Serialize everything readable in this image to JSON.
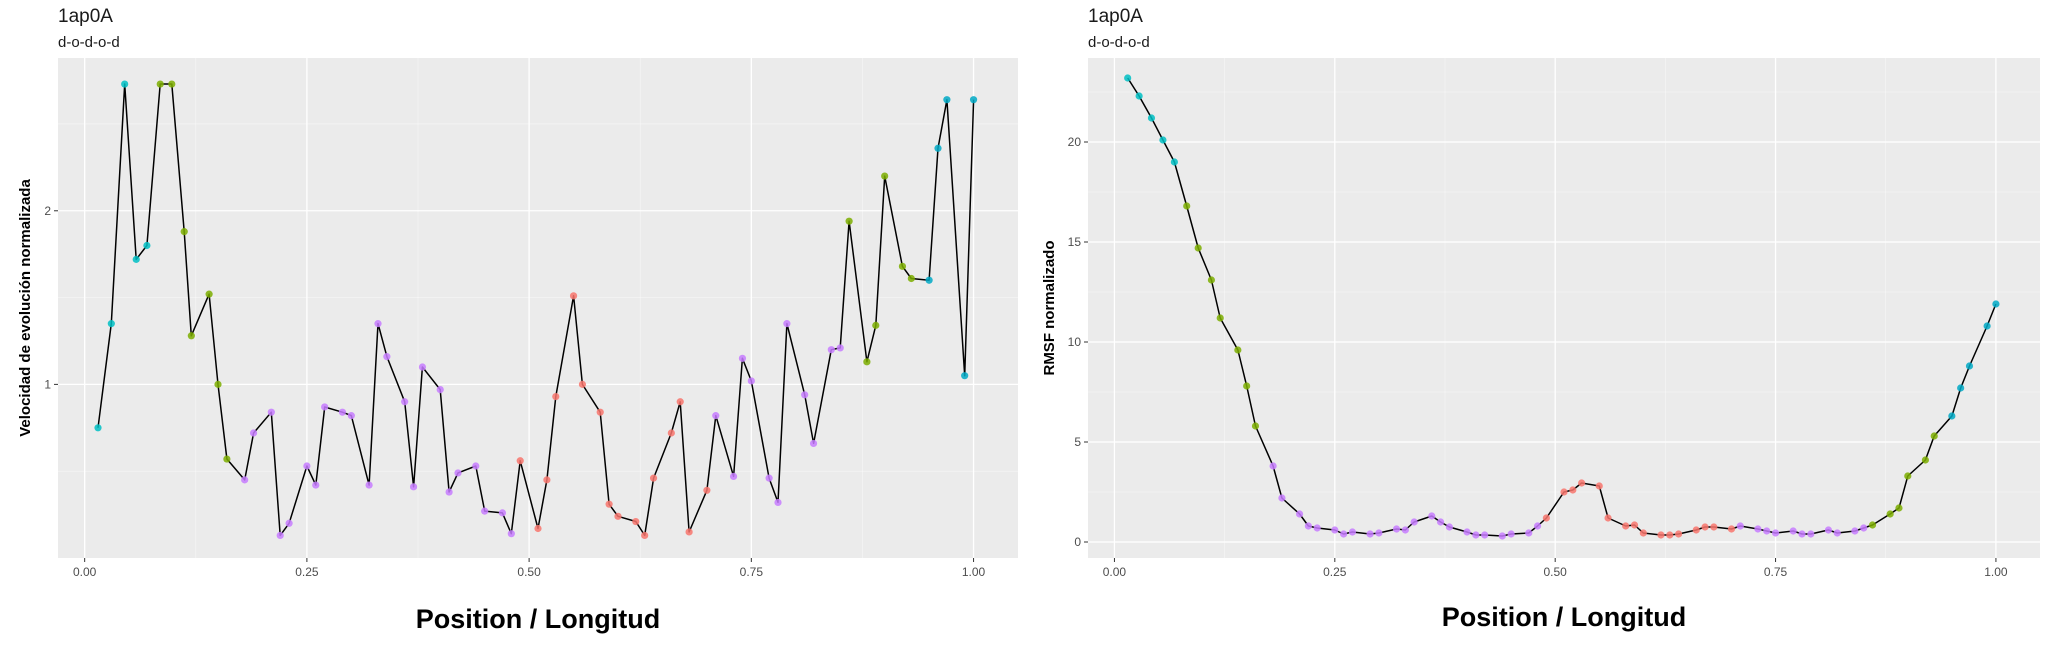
{
  "colors": {
    "panel": "#EBEBEB",
    "grid_major": "#FFFFFF",
    "line": "#000000",
    "d": "#00BFC4",
    "d_alt": "#00A9C6",
    "o_green": "#7CAE00",
    "o_purple": "#C77CFF",
    "red": "#F8766D"
  },
  "chart_data": [
    {
      "type": "line",
      "title": "1ap0A",
      "subtitle": "d-o-d-o-d",
      "xlabel": "Position / Longitud",
      "ylabel": "Velocidad de evolución normalizada",
      "xlim": [
        -0.03,
        1.05
      ],
      "ylim": [
        0.0,
        2.88
      ],
      "xticks": [
        0.0,
        0.25,
        0.5,
        0.75,
        1.0
      ],
      "xtick_labels": [
        "0.00",
        "0.25",
        "0.50",
        "0.75",
        "1.00"
      ],
      "yticks": [
        1,
        2
      ],
      "ytick_labels": [
        "1",
        "2"
      ],
      "grid": true,
      "legend": "none",
      "points": [
        {
          "x": 0.015,
          "y": 0.75,
          "color": "#00BFC4"
        },
        {
          "x": 0.03,
          "y": 1.35,
          "color": "#00BFC4"
        },
        {
          "x": 0.045,
          "y": 2.73,
          "color": "#00BFC4"
        },
        {
          "x": 0.058,
          "y": 1.72,
          "color": "#00BFC4"
        },
        {
          "x": 0.07,
          "y": 1.8,
          "color": "#00BFC4"
        },
        {
          "x": 0.085,
          "y": 2.73,
          "color": "#7CAE00"
        },
        {
          "x": 0.098,
          "y": 2.73,
          "color": "#7CAE00"
        },
        {
          "x": 0.112,
          "y": 1.88,
          "color": "#7CAE00"
        },
        {
          "x": 0.12,
          "y": 1.28,
          "color": "#7CAE00"
        },
        {
          "x": 0.14,
          "y": 1.52,
          "color": "#7CAE00"
        },
        {
          "x": 0.15,
          "y": 1.0,
          "color": "#7CAE00"
        },
        {
          "x": 0.16,
          "y": 0.57,
          "color": "#7CAE00"
        },
        {
          "x": 0.18,
          "y": 0.45,
          "color": "#C77CFF"
        },
        {
          "x": 0.19,
          "y": 0.72,
          "color": "#C77CFF"
        },
        {
          "x": 0.21,
          "y": 0.84,
          "color": "#C77CFF"
        },
        {
          "x": 0.22,
          "y": 0.13,
          "color": "#C77CFF"
        },
        {
          "x": 0.23,
          "y": 0.2,
          "color": "#C77CFF"
        },
        {
          "x": 0.25,
          "y": 0.53,
          "color": "#C77CFF"
        },
        {
          "x": 0.26,
          "y": 0.42,
          "color": "#C77CFF"
        },
        {
          "x": 0.27,
          "y": 0.87,
          "color": "#C77CFF"
        },
        {
          "x": 0.29,
          "y": 0.84,
          "color": "#C77CFF"
        },
        {
          "x": 0.3,
          "y": 0.82,
          "color": "#C77CFF"
        },
        {
          "x": 0.32,
          "y": 0.42,
          "color": "#C77CFF"
        },
        {
          "x": 0.33,
          "y": 1.35,
          "color": "#C77CFF"
        },
        {
          "x": 0.34,
          "y": 1.16,
          "color": "#C77CFF"
        },
        {
          "x": 0.36,
          "y": 0.9,
          "color": "#C77CFF"
        },
        {
          "x": 0.37,
          "y": 0.41,
          "color": "#C77CFF"
        },
        {
          "x": 0.38,
          "y": 1.1,
          "color": "#C77CFF"
        },
        {
          "x": 0.4,
          "y": 0.97,
          "color": "#C77CFF"
        },
        {
          "x": 0.41,
          "y": 0.38,
          "color": "#C77CFF"
        },
        {
          "x": 0.42,
          "y": 0.49,
          "color": "#C77CFF"
        },
        {
          "x": 0.44,
          "y": 0.53,
          "color": "#C77CFF"
        },
        {
          "x": 0.45,
          "y": 0.27,
          "color": "#C77CFF"
        },
        {
          "x": 0.47,
          "y": 0.26,
          "color": "#C77CFF"
        },
        {
          "x": 0.48,
          "y": 0.14,
          "color": "#C77CFF"
        },
        {
          "x": 0.49,
          "y": 0.56,
          "color": "#F8766D"
        },
        {
          "x": 0.51,
          "y": 0.17,
          "color": "#F8766D"
        },
        {
          "x": 0.52,
          "y": 0.45,
          "color": "#F8766D"
        },
        {
          "x": 0.53,
          "y": 0.93,
          "color": "#F8766D"
        },
        {
          "x": 0.55,
          "y": 1.51,
          "color": "#F8766D"
        },
        {
          "x": 0.56,
          "y": 1.0,
          "color": "#F8766D"
        },
        {
          "x": 0.58,
          "y": 0.84,
          "color": "#F8766D"
        },
        {
          "x": 0.59,
          "y": 0.31,
          "color": "#F8766D"
        },
        {
          "x": 0.6,
          "y": 0.24,
          "color": "#F8766D"
        },
        {
          "x": 0.62,
          "y": 0.21,
          "color": "#F8766D"
        },
        {
          "x": 0.63,
          "y": 0.13,
          "color": "#F8766D"
        },
        {
          "x": 0.64,
          "y": 0.46,
          "color": "#F8766D"
        },
        {
          "x": 0.66,
          "y": 0.72,
          "color": "#F8766D"
        },
        {
          "x": 0.67,
          "y": 0.9,
          "color": "#F8766D"
        },
        {
          "x": 0.68,
          "y": 0.15,
          "color": "#F8766D"
        },
        {
          "x": 0.7,
          "y": 0.39,
          "color": "#F8766D"
        },
        {
          "x": 0.71,
          "y": 0.82,
          "color": "#C77CFF"
        },
        {
          "x": 0.73,
          "y": 0.47,
          "color": "#C77CFF"
        },
        {
          "x": 0.74,
          "y": 1.15,
          "color": "#C77CFF"
        },
        {
          "x": 0.75,
          "y": 1.02,
          "color": "#C77CFF"
        },
        {
          "x": 0.77,
          "y": 0.46,
          "color": "#C77CFF"
        },
        {
          "x": 0.78,
          "y": 0.32,
          "color": "#C77CFF"
        },
        {
          "x": 0.79,
          "y": 1.35,
          "color": "#C77CFF"
        },
        {
          "x": 0.81,
          "y": 0.94,
          "color": "#C77CFF"
        },
        {
          "x": 0.82,
          "y": 0.66,
          "color": "#C77CFF"
        },
        {
          "x": 0.84,
          "y": 1.2,
          "color": "#C77CFF"
        },
        {
          "x": 0.85,
          "y": 1.21,
          "color": "#C77CFF"
        },
        {
          "x": 0.86,
          "y": 1.94,
          "color": "#7CAE00"
        },
        {
          "x": 0.88,
          "y": 1.13,
          "color": "#7CAE00"
        },
        {
          "x": 0.89,
          "y": 1.34,
          "color": "#7CAE00"
        },
        {
          "x": 0.9,
          "y": 2.2,
          "color": "#7CAE00"
        },
        {
          "x": 0.92,
          "y": 1.68,
          "color": "#7CAE00"
        },
        {
          "x": 0.93,
          "y": 1.61,
          "color": "#7CAE00"
        },
        {
          "x": 0.95,
          "y": 1.6,
          "color": "#00A9C6"
        },
        {
          "x": 0.96,
          "y": 2.36,
          "color": "#00A9C6"
        },
        {
          "x": 0.97,
          "y": 2.64,
          "color": "#00A9C6"
        },
        {
          "x": 0.99,
          "y": 1.05,
          "color": "#00A9C6"
        },
        {
          "x": 1.0,
          "y": 2.64,
          "color": "#00A9C6"
        }
      ]
    },
    {
      "type": "line",
      "title": "1ap0A",
      "subtitle": "d-o-d-o-d",
      "xlabel": "Position / Longitud",
      "ylabel": "RMSF normalizado",
      "xlim": [
        -0.03,
        1.05
      ],
      "ylim": [
        -0.8,
        24.2
      ],
      "xticks": [
        0.0,
        0.25,
        0.5,
        0.75,
        1.0
      ],
      "xtick_labels": [
        "0.00",
        "0.25",
        "0.50",
        "0.75",
        "1.00"
      ],
      "yticks": [
        0,
        5,
        10,
        15,
        20
      ],
      "ytick_labels": [
        "0",
        "5",
        "10",
        "15",
        "20"
      ],
      "grid": true,
      "legend": "none",
      "points": [
        {
          "x": 0.015,
          "y": 23.2,
          "color": "#00BFC4"
        },
        {
          "x": 0.028,
          "y": 22.3,
          "color": "#00BFC4"
        },
        {
          "x": 0.042,
          "y": 21.2,
          "color": "#00BFC4"
        },
        {
          "x": 0.055,
          "y": 20.1,
          "color": "#00BFC4"
        },
        {
          "x": 0.068,
          "y": 19.0,
          "color": "#00BFC4"
        },
        {
          "x": 0.082,
          "y": 16.8,
          "color": "#7CAE00"
        },
        {
          "x": 0.095,
          "y": 14.7,
          "color": "#7CAE00"
        },
        {
          "x": 0.11,
          "y": 13.1,
          "color": "#7CAE00"
        },
        {
          "x": 0.12,
          "y": 11.2,
          "color": "#7CAE00"
        },
        {
          "x": 0.14,
          "y": 9.6,
          "color": "#7CAE00"
        },
        {
          "x": 0.15,
          "y": 7.8,
          "color": "#7CAE00"
        },
        {
          "x": 0.16,
          "y": 5.8,
          "color": "#7CAE00"
        },
        {
          "x": 0.18,
          "y": 3.8,
          "color": "#C77CFF"
        },
        {
          "x": 0.19,
          "y": 2.2,
          "color": "#C77CFF"
        },
        {
          "x": 0.21,
          "y": 1.4,
          "color": "#C77CFF"
        },
        {
          "x": 0.22,
          "y": 0.8,
          "color": "#C77CFF"
        },
        {
          "x": 0.23,
          "y": 0.7,
          "color": "#C77CFF"
        },
        {
          "x": 0.25,
          "y": 0.6,
          "color": "#C77CFF"
        },
        {
          "x": 0.26,
          "y": 0.4,
          "color": "#C77CFF"
        },
        {
          "x": 0.27,
          "y": 0.5,
          "color": "#C77CFF"
        },
        {
          "x": 0.29,
          "y": 0.4,
          "color": "#C77CFF"
        },
        {
          "x": 0.3,
          "y": 0.45,
          "color": "#C77CFF"
        },
        {
          "x": 0.32,
          "y": 0.65,
          "color": "#C77CFF"
        },
        {
          "x": 0.33,
          "y": 0.6,
          "color": "#C77CFF"
        },
        {
          "x": 0.34,
          "y": 1.0,
          "color": "#C77CFF"
        },
        {
          "x": 0.36,
          "y": 1.3,
          "color": "#C77CFF"
        },
        {
          "x": 0.37,
          "y": 1.0,
          "color": "#C77CFF"
        },
        {
          "x": 0.38,
          "y": 0.75,
          "color": "#C77CFF"
        },
        {
          "x": 0.4,
          "y": 0.5,
          "color": "#C77CFF"
        },
        {
          "x": 0.41,
          "y": 0.35,
          "color": "#C77CFF"
        },
        {
          "x": 0.42,
          "y": 0.35,
          "color": "#C77CFF"
        },
        {
          "x": 0.44,
          "y": 0.3,
          "color": "#C77CFF"
        },
        {
          "x": 0.45,
          "y": 0.4,
          "color": "#C77CFF"
        },
        {
          "x": 0.47,
          "y": 0.45,
          "color": "#C77CFF"
        },
        {
          "x": 0.48,
          "y": 0.8,
          "color": "#C77CFF"
        },
        {
          "x": 0.49,
          "y": 1.2,
          "color": "#F8766D"
        },
        {
          "x": 0.51,
          "y": 2.5,
          "color": "#F8766D"
        },
        {
          "x": 0.52,
          "y": 2.6,
          "color": "#F8766D"
        },
        {
          "x": 0.53,
          "y": 2.95,
          "color": "#F8766D"
        },
        {
          "x": 0.55,
          "y": 2.8,
          "color": "#F8766D"
        },
        {
          "x": 0.56,
          "y": 1.2,
          "color": "#F8766D"
        },
        {
          "x": 0.58,
          "y": 0.8,
          "color": "#F8766D"
        },
        {
          "x": 0.59,
          "y": 0.85,
          "color": "#F8766D"
        },
        {
          "x": 0.6,
          "y": 0.45,
          "color": "#F8766D"
        },
        {
          "x": 0.62,
          "y": 0.35,
          "color": "#F8766D"
        },
        {
          "x": 0.63,
          "y": 0.35,
          "color": "#F8766D"
        },
        {
          "x": 0.64,
          "y": 0.4,
          "color": "#F8766D"
        },
        {
          "x": 0.66,
          "y": 0.6,
          "color": "#F8766D"
        },
        {
          "x": 0.67,
          "y": 0.75,
          "color": "#F8766D"
        },
        {
          "x": 0.68,
          "y": 0.75,
          "color": "#F8766D"
        },
        {
          "x": 0.7,
          "y": 0.65,
          "color": "#F8766D"
        },
        {
          "x": 0.71,
          "y": 0.8,
          "color": "#C77CFF"
        },
        {
          "x": 0.73,
          "y": 0.65,
          "color": "#C77CFF"
        },
        {
          "x": 0.74,
          "y": 0.55,
          "color": "#C77CFF"
        },
        {
          "x": 0.75,
          "y": 0.45,
          "color": "#C77CFF"
        },
        {
          "x": 0.77,
          "y": 0.55,
          "color": "#C77CFF"
        },
        {
          "x": 0.78,
          "y": 0.4,
          "color": "#C77CFF"
        },
        {
          "x": 0.79,
          "y": 0.4,
          "color": "#C77CFF"
        },
        {
          "x": 0.81,
          "y": 0.6,
          "color": "#C77CFF"
        },
        {
          "x": 0.82,
          "y": 0.45,
          "color": "#C77CFF"
        },
        {
          "x": 0.84,
          "y": 0.55,
          "color": "#C77CFF"
        },
        {
          "x": 0.85,
          "y": 0.7,
          "color": "#C77CFF"
        },
        {
          "x": 0.86,
          "y": 0.85,
          "color": "#7CAE00"
        },
        {
          "x": 0.88,
          "y": 1.4,
          "color": "#7CAE00"
        },
        {
          "x": 0.89,
          "y": 1.7,
          "color": "#7CAE00"
        },
        {
          "x": 0.9,
          "y": 3.3,
          "color": "#7CAE00"
        },
        {
          "x": 0.92,
          "y": 4.1,
          "color": "#7CAE00"
        },
        {
          "x": 0.93,
          "y": 5.3,
          "color": "#7CAE00"
        },
        {
          "x": 0.95,
          "y": 6.3,
          "color": "#00A9C6"
        },
        {
          "x": 0.96,
          "y": 7.7,
          "color": "#00A9C6"
        },
        {
          "x": 0.97,
          "y": 8.8,
          "color": "#00A9C6"
        },
        {
          "x": 0.99,
          "y": 10.8,
          "color": "#00A9C6"
        },
        {
          "x": 1.0,
          "y": 11.9,
          "color": "#00A9C6"
        }
      ]
    }
  ]
}
